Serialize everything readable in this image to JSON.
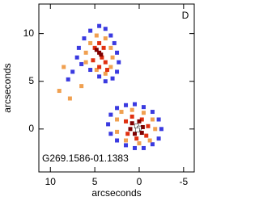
{
  "chart_data": {
    "type": "scatter",
    "xlabel": "arcseconds",
    "ylabel": "arcseconds",
    "panel_label": "D",
    "annotation": "G269.1586-01.1383",
    "xlim": [
      11.3,
      -6.2
    ],
    "ylim": [
      -4.5,
      13.1
    ],
    "xticks": [
      10,
      5,
      0,
      -5
    ],
    "yticks": [
      0,
      5,
      10
    ],
    "series": [
      {
        "color": "#3a3ae0",
        "x": [
          7.0,
          6.8,
          6.2,
          5.5,
          4.5,
          3.8,
          3.2,
          2.8,
          2.5,
          2.3,
          2.5,
          3.0,
          3.8,
          4.5,
          5.5,
          6.5,
          7.5,
          8.0,
          3.5,
          3.2,
          2.5,
          1.5,
          0.5,
          -0.5,
          -1.5,
          -2.2,
          -2.5,
          -2.2,
          -1.5,
          -0.5,
          0.5,
          1.5,
          2.5,
          3.2
        ],
        "y": [
          7.5,
          8.5,
          9.5,
          10.3,
          10.8,
          10.5,
          9.8,
          9.0,
          8.0,
          7.0,
          6.0,
          5.3,
          5.0,
          5.5,
          6.2,
          6.8,
          6.0,
          5.2,
          0.5,
          1.5,
          2.2,
          2.5,
          2.6,
          2.3,
          1.8,
          1.0,
          0.0,
          -1.0,
          -1.6,
          -2.0,
          -2.0,
          -1.7,
          -1.2,
          -0.5
        ]
      },
      {
        "color": "#f0a050",
        "x": [
          6.0,
          5.5,
          4.8,
          3.8,
          3.2,
          3.0,
          3.2,
          3.8,
          4.8,
          6.0,
          8.5,
          9.0,
          7.8,
          6.5,
          2.5,
          2.0,
          0.8,
          -0.5,
          -1.5,
          -1.8,
          -1.2,
          0.0,
          1.5,
          2.5
        ],
        "y": [
          8.0,
          9.0,
          9.8,
          9.5,
          8.5,
          7.5,
          6.5,
          5.8,
          6.2,
          7.0,
          6.5,
          4.0,
          3.2,
          4.5,
          1.0,
          1.8,
          2.0,
          1.7,
          1.0,
          0.0,
          -1.2,
          -1.5,
          -1.2,
          -0.3
        ]
      },
      {
        "color": "#e03010",
        "x": [
          5.0,
          4.5,
          4.0,
          4.2,
          3.8,
          4.5,
          5.2,
          3.6,
          1.5,
          0.8,
          -0.3,
          -1.0,
          -0.8,
          0.3,
          1.3
        ],
        "y": [
          8.5,
          9.0,
          8.5,
          7.5,
          7.0,
          6.5,
          7.2,
          6.2,
          0.8,
          1.3,
          1.0,
          0.3,
          -0.7,
          -1.0,
          -0.5
        ]
      },
      {
        "color": "#800000",
        "x": [
          4.5,
          4.3,
          4.8,
          0.8,
          0.0,
          -0.4,
          -0.3,
          0.5,
          1.0
        ],
        "y": [
          8.0,
          7.8,
          8.3,
          0.6,
          0.8,
          0.2,
          -0.4,
          -0.5,
          0.0
        ]
      },
      {
        "color": "#ffffff",
        "x": [
          0.3,
          0.0,
          0.2
        ],
        "y": [
          0.3,
          0.1,
          -0.1
        ]
      }
    ]
  }
}
